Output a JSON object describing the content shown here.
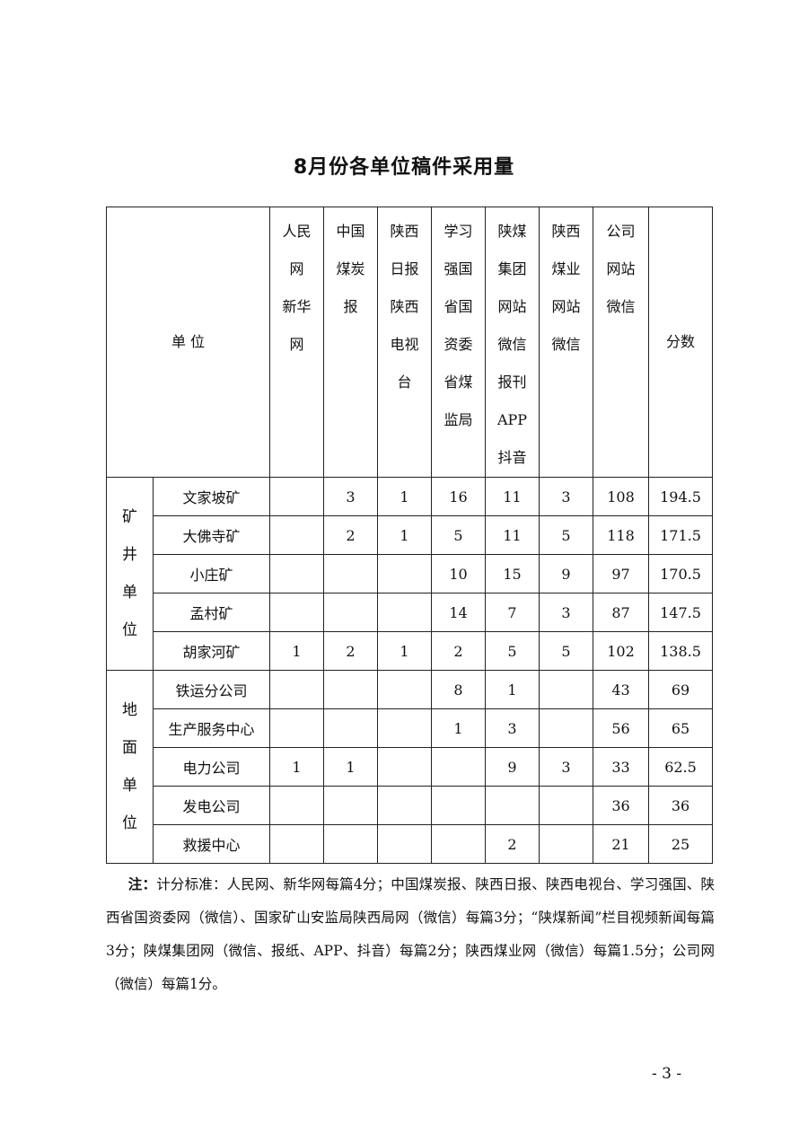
{
  "title": "8月份各单位稿件采用量",
  "table": {
    "unit_header": "单 位",
    "score_header": "分数",
    "columns": [
      [
        "人民",
        "网",
        "新华",
        "网"
      ],
      [
        "中国",
        "煤炭",
        "报"
      ],
      [
        "陕西",
        "日报",
        "陕西",
        "电视",
        "台"
      ],
      [
        "学习",
        "强国",
        "省国",
        "资委",
        "省煤",
        "监局"
      ],
      [
        "陕煤",
        "集团",
        "网站",
        "微信",
        "报刊",
        "APP",
        "抖音"
      ],
      [
        "陕西",
        "煤业",
        "网站",
        "微信"
      ],
      [
        "公司",
        "网站",
        "微信"
      ]
    ],
    "groups": [
      {
        "label": [
          "矿",
          "井",
          "单",
          "位"
        ],
        "rows": [
          {
            "unit": "文家坡矿",
            "values": [
              "",
              "3",
              "1",
              "16",
              "11",
              "3",
              "108"
            ],
            "score": "194.5"
          },
          {
            "unit": "大佛寺矿",
            "values": [
              "",
              "2",
              "1",
              "5",
              "11",
              "5",
              "118"
            ],
            "score": "171.5"
          },
          {
            "unit": "小庄矿",
            "values": [
              "",
              "",
              "",
              "10",
              "15",
              "9",
              "97"
            ],
            "score": "170.5"
          },
          {
            "unit": "孟村矿",
            "values": [
              "",
              "",
              "",
              "14",
              "7",
              "3",
              "87"
            ],
            "score": "147.5"
          },
          {
            "unit": "胡家河矿",
            "values": [
              "1",
              "2",
              "1",
              "2",
              "5",
              "5",
              "102"
            ],
            "score": "138.5"
          }
        ]
      },
      {
        "label": [
          "地",
          "面",
          "单",
          "位"
        ],
        "rows": [
          {
            "unit": "铁运分公司",
            "values": [
              "",
              "",
              "",
              "8",
              "1",
              "",
              "43"
            ],
            "score": "69"
          },
          {
            "unit": "生产服务中心",
            "values": [
              "",
              "",
              "",
              "1",
              "3",
              "",
              "56"
            ],
            "score": "65"
          },
          {
            "unit": "电力公司",
            "values": [
              "1",
              "1",
              "",
              "",
              "9",
              "3",
              "33"
            ],
            "score": "62.5"
          },
          {
            "unit": "发电公司",
            "values": [
              "",
              "",
              "",
              "",
              "",
              "",
              "36"
            ],
            "score": "36"
          },
          {
            "unit": "救援中心",
            "values": [
              "",
              "",
              "",
              "",
              "2",
              "",
              "21"
            ],
            "score": "25"
          }
        ]
      }
    ]
  },
  "note": {
    "label": "注：",
    "text": "计分标准：人民网、新华网每篇4分；中国煤炭报、陕西日报、陕西电视台、学习强国、陕西省国资委网（微信）、国家矿山安监局陕西局网（微信）每篇3分；“陕煤新闻”栏目视频新闻每篇3分；陕煤集团网（微信、报纸、APP、抖音）每篇2分；陕西煤业网（微信）每篇1.5分；公司网（微信）每篇1分。"
  },
  "page_number": "- 3 -"
}
